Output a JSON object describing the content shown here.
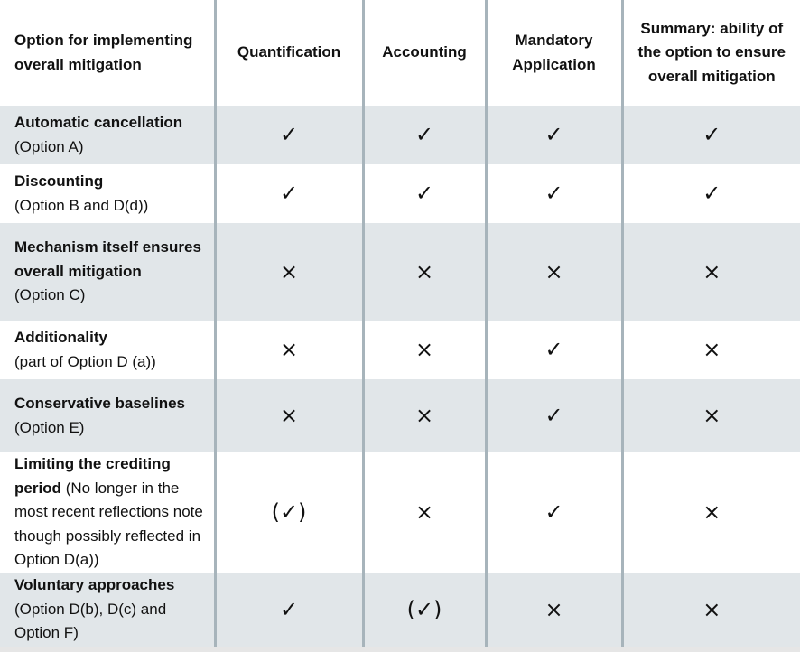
{
  "table": {
    "header": [
      "Option for implementing overall mitigation",
      "Quantification",
      "Accounting",
      "Mandatory Application",
      "Summary: ability of the option to ensure overall mitigation"
    ],
    "rows": [
      {
        "bold": "Automatic cancellation",
        "note": "(Option A)",
        "cells": [
          "✓",
          "✓",
          "✓",
          "✓"
        ]
      },
      {
        "bold": "Discounting",
        "note": "(Option B and D(d))",
        "cells": [
          "✓",
          "✓",
          "✓",
          "✓"
        ]
      },
      {
        "bold": "Mechanism itself ensures overall mitigation",
        "note": "(Option C)",
        "cells": [
          "×",
          "×",
          "×",
          "×"
        ]
      },
      {
        "bold": "Additionality",
        "note": "(part of Option D (a))",
        "cells": [
          "×",
          "×",
          "✓",
          "×"
        ]
      },
      {
        "bold": "Conservative baselines",
        "note": "(Option E)",
        "cells": [
          "×",
          "×",
          "✓",
          "×"
        ]
      },
      {
        "bold": "Limiting the crediting period",
        "note": "(No longer in the most recent reflections note though possibly reflected in Option D(a))",
        "cells": [
          "(✓)",
          "×",
          "✓",
          "×"
        ]
      },
      {
        "bold": "Voluntary approaches",
        "note": "(Option D(b), D(c) and Option F)",
        "cells": [
          "✓",
          "(✓)",
          "×",
          "×"
        ]
      }
    ]
  }
}
